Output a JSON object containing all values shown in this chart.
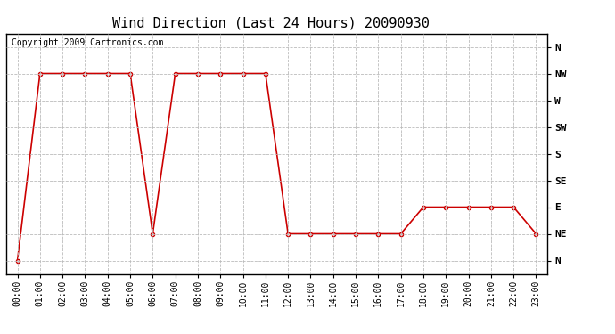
{
  "title": "Wind Direction (Last 24 Hours) 20090930",
  "copyright": "Copyright 2009 Cartronics.com",
  "x_labels": [
    "00:00",
    "01:00",
    "02:00",
    "03:00",
    "04:00",
    "05:00",
    "06:00",
    "07:00",
    "08:00",
    "09:00",
    "10:00",
    "11:00",
    "12:00",
    "13:00",
    "14:00",
    "15:00",
    "16:00",
    "17:00",
    "18:00",
    "19:00",
    "20:00",
    "21:00",
    "22:00",
    "23:00"
  ],
  "y_labels": [
    "N",
    "NE",
    "E",
    "SE",
    "S",
    "SW",
    "W",
    "NW",
    "N"
  ],
  "y_values": [
    0,
    1,
    2,
    3,
    4,
    5,
    6,
    7,
    8
  ],
  "data_y": [
    0,
    7,
    7,
    7,
    7,
    7,
    1,
    7,
    7,
    7,
    7,
    7,
    1,
    1,
    1,
    1,
    1,
    1,
    2,
    2,
    2,
    2,
    2,
    1
  ],
  "line_color": "#cc0000",
  "marker_color": "#cc0000",
  "bg_color": "#ffffff",
  "grid_color": "#bbbbbb",
  "title_fontsize": 11,
  "axis_fontsize": 7,
  "copyright_fontsize": 7
}
